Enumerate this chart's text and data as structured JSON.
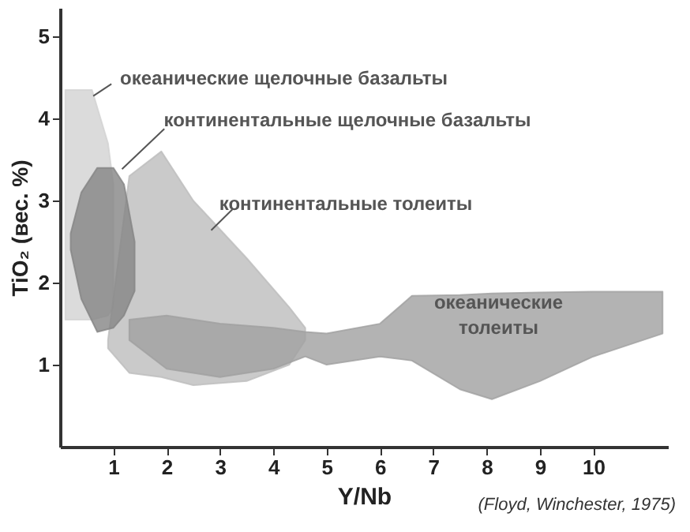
{
  "chart_data": {
    "type": "area",
    "xlabel": "Y/Nb",
    "ylabel": "TiO₂ (вес. %)",
    "xlim": [
      0,
      11.4
    ],
    "ylim": [
      0,
      5.35
    ],
    "xticks": [
      1,
      2,
      3,
      4,
      5,
      6,
      7,
      8,
      9,
      10
    ],
    "yticks": [
      1,
      2,
      3,
      4,
      5
    ],
    "grid": false,
    "series": [
      {
        "name": "океанические щелочные базальты",
        "color": "#d2d2d2",
        "x": [
          0.1,
          0.6,
          0.9,
          1.0,
          1.0,
          0.9,
          0.6,
          0.1
        ],
        "values": [
          4.35,
          4.35,
          3.7,
          3.2,
          1.7,
          1.6,
          1.55,
          1.55
        ]
      },
      {
        "name": "континентальные толеиты",
        "color": "#bdbdbd",
        "x": [
          0.9,
          1.3,
          1.9,
          2.5,
          3.5,
          4.3,
          4.6,
          4.6,
          4.3,
          3.5,
          2.5,
          1.9,
          1.3,
          0.9
        ],
        "values": [
          1.3,
          3.3,
          3.6,
          3.0,
          2.3,
          1.7,
          1.45,
          1.3,
          1.0,
          0.8,
          0.75,
          0.85,
          0.9,
          1.2
        ]
      },
      {
        "name": "океанические\nтолеиты",
        "color": "#a0a0a0",
        "x": [
          1.3,
          2,
          3,
          4,
          4.6,
          5,
          6,
          6.6,
          7.5,
          8.1,
          9,
          10,
          11.3,
          11.3,
          10,
          9,
          8.1,
          7.5,
          6.6,
          6,
          5,
          4.6,
          4,
          3,
          2,
          1.3
        ],
        "values": [
          1.55,
          1.6,
          1.5,
          1.45,
          1.4,
          1.38,
          1.5,
          1.84,
          1.85,
          1.87,
          1.88,
          1.89,
          1.89,
          1.38,
          1.1,
          0.8,
          0.58,
          0.7,
          1.05,
          1.1,
          1.0,
          1.1,
          0.95,
          0.85,
          0.95,
          1.3
        ]
      },
      {
        "name": "континентальные щелочные базальты",
        "color": "#858585",
        "x": [
          0.2,
          0.4,
          0.7,
          1.0,
          1.2,
          1.4,
          1.4,
          1.2,
          1.0,
          0.7,
          0.4,
          0.2
        ],
        "values": [
          2.6,
          3.1,
          3.4,
          3.4,
          3.2,
          2.5,
          1.9,
          1.6,
          1.45,
          1.4,
          1.8,
          2.4
        ]
      }
    ],
    "annotations": [
      "(Floyd, Winchester, 1975)"
    ]
  }
}
